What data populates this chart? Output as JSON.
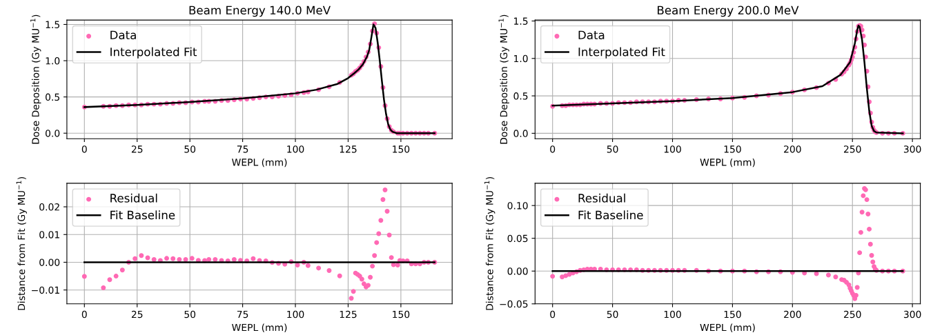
{
  "chart_data": [
    {
      "type": "scatter",
      "title": "Beam Energy 140.0 MeV",
      "xlabel": "WEPL (mm)",
      "ylabel": "Dose Deposition (Gy MU$^{−1}$)",
      "xlim": [
        -8.3,
        174.3
      ],
      "xticks": [
        0,
        25,
        50,
        75,
        100,
        125,
        150
      ],
      "ylim": [
        -0.076,
        1.56
      ],
      "yticks": [
        {
          "value": 0,
          "label": "0.0"
        },
        {
          "value": 0.5,
          "label": "0.5"
        },
        {
          "value": 1,
          "label": "1.0"
        },
        {
          "value": 1.5,
          "label": "1.5"
        }
      ],
      "grid": true,
      "legend": "top left",
      "series": [
        {
          "name": "Data",
          "color": "#ff69b4",
          "marker": "circle",
          "x": [
            0,
            9,
            12,
            15,
            18,
            21,
            24,
            27,
            30,
            33,
            36,
            39,
            42,
            45,
            48,
            51,
            54,
            57,
            59,
            62,
            65,
            68,
            71,
            74,
            77,
            80,
            83,
            86,
            89,
            92,
            95,
            98,
            101,
            104,
            106,
            111,
            116,
            121,
            126.5,
            127.5,
            128.5,
            129.5,
            130.5,
            131.5,
            132.5,
            133.5,
            134.5,
            135.5,
            136.5,
            137.5,
            138.5,
            139.5,
            140.5,
            141.5,
            142.5,
            143.5,
            144.5,
            145.5,
            146.5,
            148.5,
            149.5,
            151,
            153,
            155,
            157,
            159,
            161,
            163,
            166
          ],
          "values": [
            0.36,
            0.37,
            0.37,
            0.38,
            0.38,
            0.39,
            0.39,
            0.39,
            0.4,
            0.4,
            0.4,
            0.41,
            0.41,
            0.42,
            0.42,
            0.43,
            0.43,
            0.44,
            0.44,
            0.44,
            0.45,
            0.45,
            0.46,
            0.47,
            0.47,
            0.48,
            0.49,
            0.5,
            0.5,
            0.51,
            0.52,
            0.53,
            0.55,
            0.56,
            0.57,
            0.6,
            0.64,
            0.7,
            0.8,
            0.82,
            0.85,
            0.87,
            0.9,
            0.94,
            0.99,
            1.05,
            1.12,
            1.23,
            1.41,
            1.51,
            1.38,
            1.18,
            0.92,
            0.63,
            0.38,
            0.2,
            0.09,
            0.04,
            0.02,
            0,
            0,
            0,
            0,
            0,
            0,
            0,
            0,
            0,
            0
          ]
        },
        {
          "name": "Interpolated Fit",
          "type": "line",
          "color": "#000000",
          "marker": "none",
          "line_style": "solid",
          "x": [
            0,
            25,
            50,
            75,
            100,
            110,
            120,
            125,
            128,
            130,
            132,
            134,
            135,
            136,
            137,
            138,
            139,
            140,
            141,
            142,
            143,
            144,
            145,
            146,
            147,
            148,
            150,
            166
          ],
          "values": [
            0.36,
            0.39,
            0.43,
            0.48,
            0.55,
            0.6,
            0.68,
            0.76,
            0.83,
            0.88,
            0.95,
            1.06,
            1.15,
            1.32,
            1.5,
            1.45,
            1.25,
            1.0,
            0.72,
            0.46,
            0.26,
            0.12,
            0.05,
            0.02,
            0.01,
            0,
            0,
            0
          ]
        }
      ]
    },
    {
      "type": "scatter",
      "title": "Beam Energy 200.0 MeV",
      "xlabel": "WEPL (mm)",
      "ylabel": "Dose Deposition (Gy MU$^{−1}$)",
      "xlim": [
        -14.6,
        306.6
      ],
      "xticks": [
        0,
        50,
        100,
        150,
        200,
        250,
        300
      ],
      "ylim": [
        -0.072,
        1.512
      ],
      "yticks": [
        {
          "value": 0,
          "label": "0.0"
        },
        {
          "value": 0.5,
          "label": "0.5"
        },
        {
          "value": 1,
          "label": "1.0"
        },
        {
          "value": 1.5,
          "label": "1.5"
        }
      ],
      "grid": true,
      "legend": "top left",
      "series": [
        {
          "name": "Data",
          "color": "#ff69b4",
          "marker": "circle",
          "x": [
            0,
            8,
            11,
            14,
            17,
            20,
            23,
            26,
            29,
            32,
            35,
            40,
            45,
            50,
            55,
            60,
            65,
            70,
            75,
            80,
            85,
            90,
            95,
            100,
            105,
            110,
            120,
            130,
            140,
            150,
            160,
            170,
            180,
            190,
            200,
            210,
            220,
            230,
            236,
            241,
            243,
            245,
            247,
            248,
            249,
            250,
            251,
            252,
            253,
            254,
            255,
            256,
            257,
            258,
            259,
            260,
            261,
            262,
            263,
            264,
            265,
            266,
            267,
            268,
            269,
            270,
            275,
            280,
            285,
            292
          ],
          "values": [
            0.36,
            0.37,
            0.37,
            0.38,
            0.38,
            0.38,
            0.38,
            0.39,
            0.39,
            0.39,
            0.39,
            0.4,
            0.4,
            0.4,
            0.41,
            0.41,
            0.41,
            0.42,
            0.42,
            0.42,
            0.42,
            0.43,
            0.43,
            0.43,
            0.44,
            0.44,
            0.45,
            0.46,
            0.46,
            0.47,
            0.48,
            0.5,
            0.51,
            0.53,
            0.55,
            0.58,
            0.61,
            0.67,
            0.72,
            0.79,
            0.82,
            0.86,
            0.91,
            0.94,
            0.98,
            1.02,
            1.08,
            1.15,
            1.26,
            1.36,
            1.43,
            1.44,
            1.43,
            1.38,
            1.3,
            1.18,
            1.02,
            0.83,
            0.62,
            0.42,
            0.27,
            0.15,
            0.08,
            0.04,
            0.02,
            0.01,
            0,
            0,
            0,
            0
          ]
        },
        {
          "name": "Interpolated Fit",
          "type": "line",
          "color": "#000000",
          "marker": "none",
          "line_style": "solid",
          "x": [
            0,
            50,
            100,
            150,
            200,
            225,
            240,
            248,
            252,
            254,
            255,
            256,
            258,
            260,
            262,
            264,
            266,
            268,
            270,
            292
          ],
          "values": [
            0.37,
            0.4,
            0.43,
            0.47,
            0.55,
            0.63,
            0.78,
            0.95,
            1.2,
            1.38,
            1.44,
            1.42,
            1.25,
            0.95,
            0.6,
            0.3,
            0.1,
            0.03,
            0.01,
            0
          ]
        }
      ]
    },
    {
      "type": "scatter",
      "xlabel": "WEPL (mm)",
      "ylabel": "Distance from Fit (Gy MU$^{−1}$)",
      "xlim": [
        -8.3,
        174.3
      ],
      "xticks": [
        0,
        25,
        50,
        75,
        100,
        125,
        150
      ],
      "ylim": [
        -0.015,
        0.0285
      ],
      "yticks": [
        {
          "value": -0.01,
          "label": "−0.01"
        },
        {
          "value": 0,
          "label": "0.00"
        },
        {
          "value": 0.01,
          "label": "0.01"
        },
        {
          "value": 0.02,
          "label": "0.02"
        }
      ],
      "grid": true,
      "legend": "top left",
      "series": [
        {
          "name": "Residual",
          "color": "#ff69b4",
          "marker": "circle",
          "x": [
            0,
            9,
            12,
            15,
            18,
            21,
            24,
            27,
            30,
            33,
            36,
            39,
            42,
            45,
            48,
            51,
            54,
            57,
            59,
            62,
            65,
            68,
            71,
            74,
            77,
            80,
            83,
            86,
            89,
            92,
            95,
            98,
            101,
            104,
            106,
            111,
            116,
            121,
            126.5,
            127.5,
            128.5,
            129.5,
            130.5,
            131.5,
            132.5,
            133.5,
            134.5,
            135.5,
            136.5,
            137.5,
            138.5,
            139.5,
            140.5,
            141.5,
            142.5,
            143.5,
            144.5,
            145.5,
            146.5,
            148.5,
            149.5,
            151,
            153,
            155,
            157,
            159,
            161,
            163,
            166
          ],
          "values": [
            -0.0051,
            -0.0092,
            -0.0063,
            -0.005,
            -0.0028,
            0.0,
            0.0013,
            0.0024,
            0.0016,
            0.001,
            0.0006,
            0.0014,
            0.0013,
            0.001,
            0.001,
            0.0014,
            0.0007,
            0.0006,
            0.001,
            0.001,
            0.0006,
            0.0005,
            0.001,
            0.0007,
            0.0005,
            0.0013,
            0.0006,
            0.0005,
            -0.0001,
            -0.0004,
            -0.0007,
            0.0002,
            -0.001,
            0.0,
            -0.0012,
            -0.0021,
            -0.003,
            -0.0049,
            -0.013,
            -0.0105,
            -0.0039,
            -0.0044,
            -0.005,
            -0.0061,
            -0.0078,
            -0.0089,
            -0.0083,
            -0.0054,
            -0.0014,
            0.0024,
            0.0071,
            0.0103,
            0.0151,
            0.0226,
            0.0261,
            0.0184,
            0.0098,
            0.0017,
            -0.0009,
            -0.001,
            0.0006,
            0.0005,
            0.0005,
            -0.0006,
            -0.0006,
            -0.0006,
            0.0,
            0.0,
            0.0
          ]
        },
        {
          "name": "Fit Baseline",
          "type": "line",
          "color": "#000000",
          "marker": "none",
          "line_style": "solid",
          "x": [
            0,
            166
          ],
          "values": [
            0,
            0
          ]
        }
      ]
    },
    {
      "type": "scatter",
      "xlabel": "WEPL (mm)",
      "ylabel": "Distance from Fit (Gy MU$^{−1}$)",
      "xlim": [
        -14.6,
        306.6
      ],
      "xticks": [
        0,
        50,
        100,
        150,
        200,
        250,
        300
      ],
      "ylim": [
        -0.05,
        0.134
      ],
      "yticks": [
        {
          "value": -0.05,
          "label": "−0.05"
        },
        {
          "value": 0,
          "label": "0.00"
        },
        {
          "value": 0.05,
          "label": "0.05"
        },
        {
          "value": 0.1,
          "label": "0.10"
        }
      ],
      "grid": true,
      "legend": "top left",
      "series": [
        {
          "name": "Residual",
          "color": "#ff69b4",
          "marker": "circle",
          "x": [
            0,
            8,
            11,
            14,
            17,
            20,
            23,
            26,
            29,
            32,
            35,
            40,
            45,
            50,
            55,
            60,
            65,
            70,
            75,
            80,
            85,
            90,
            95,
            100,
            105,
            110,
            120,
            130,
            140,
            150,
            160,
            170,
            180,
            190,
            200,
            210,
            220,
            230,
            236,
            241,
            243,
            245,
            247,
            248,
            249,
            250,
            251,
            252,
            253,
            254,
            255,
            256,
            257,
            258,
            259,
            260,
            261,
            262,
            263,
            264,
            265,
            266,
            267,
            268,
            269,
            270,
            275,
            280,
            285,
            292
          ],
          "values": [
            -0.008,
            -0.009,
            -0.007,
            -0.005,
            -0.003,
            -0.001,
            0.001,
            0.002,
            0.003,
            0.003,
            0.003,
            0.003,
            0.002,
            0.002,
            0.002,
            0.002,
            0.002,
            0.002,
            0.001,
            0.001,
            0.001,
            0.001,
            0.001,
            0.001,
            0.001,
            0.001,
            0.001,
            0.0,
            0.0,
            0.0,
            0.0,
            -0.001,
            -0.001,
            -0.001,
            -0.002,
            -0.003,
            -0.004,
            -0.006,
            -0.009,
            -0.013,
            -0.014,
            -0.017,
            -0.021,
            -0.026,
            -0.03,
            -0.034,
            -0.037,
            -0.042,
            -0.037,
            -0.025,
            -0.003,
            0.028,
            0.059,
            0.09,
            0.115,
            0.126,
            0.124,
            0.109,
            0.087,
            0.064,
            0.041,
            0.024,
            0.014,
            0.007,
            0.003,
            0.001,
            0,
            0,
            0,
            0
          ]
        },
        {
          "name": "Fit Baseline",
          "type": "line",
          "color": "#000000",
          "marker": "none",
          "line_style": "solid",
          "x": [
            0,
            292
          ],
          "values": [
            0,
            0
          ]
        }
      ]
    }
  ]
}
